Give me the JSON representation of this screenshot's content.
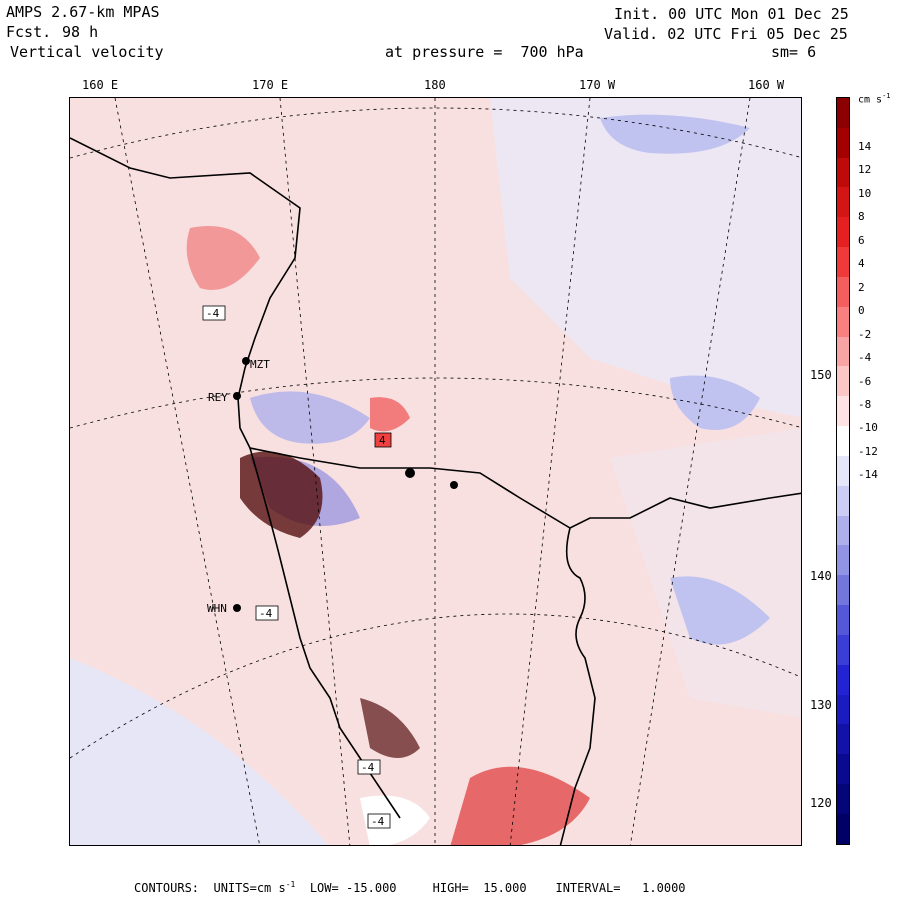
{
  "header": {
    "model": "AMPS 2.67-km MPAS",
    "fcst_label": "Fcst.",
    "fcst_value": "98 h",
    "field": "Vertical velocity",
    "init": "Init. 00 UTC Mon 01 Dec 25",
    "valid": "Valid. 02 UTC Fri 05 Dec 25",
    "pressure": "at pressure =  700 hPa",
    "smooth": "sm= 6"
  },
  "axes": {
    "top_longitudes": [
      "160 E",
      "170 E",
      "180",
      "170 W",
      "160 W"
    ],
    "right_longitudes": [
      "150 W",
      "140 W",
      "130 W",
      "120 W"
    ]
  },
  "stations": [
    "MZT",
    "REY",
    "WHN",
    "4",
    "-4",
    "-4",
    "-4",
    "-4"
  ],
  "colorbar": {
    "units_label": "cm s",
    "units_exp": "-1",
    "tick_labels": [
      "14",
      "12",
      "10",
      "8",
      "6",
      "4",
      "2",
      "0",
      "-2",
      "-4",
      "-6",
      "-8",
      "-10",
      "-12",
      "-14"
    ],
    "colors": [
      "#8b0000",
      "#a40000",
      "#bf0a0a",
      "#d41515",
      "#e42020",
      "#f03a3a",
      "#f55e5e",
      "#f88080",
      "#f9a4a4",
      "#fbc6c6",
      "#fde3e3",
      "#ffffff",
      "#e6e6fb",
      "#cccdf4",
      "#aeb0ec",
      "#9193e5",
      "#7377dd",
      "#5458d8",
      "#3a3ed6",
      "#2224d3",
      "#1a1bc0",
      "#1212a8",
      "#0a0a90",
      "#05057a",
      "#000066"
    ]
  },
  "footer": {
    "contours_label": "CONTOURS:",
    "units_label": "UNITS=cm s",
    "units_exp": "-1",
    "low": "LOW= -15.000",
    "high": "HIGH=  15.000",
    "interval": "INTERVAL=   1.0000"
  }
}
